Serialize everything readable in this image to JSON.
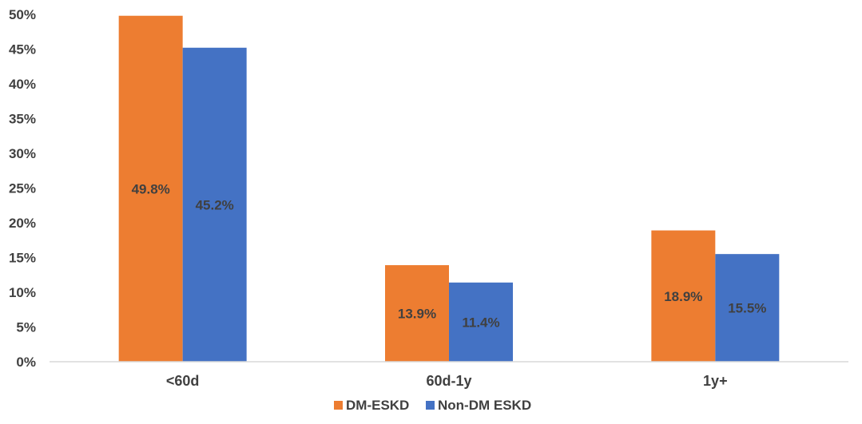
{
  "chart_data": {
    "type": "bar",
    "categories": [
      "<60d",
      "60d-1y",
      "1y+"
    ],
    "series": [
      {
        "name": "DM-ESKD",
        "color": "#ED7D31",
        "values": [
          49.8,
          13.9,
          18.9
        ],
        "labels": [
          "49.8%",
          "13.9%",
          "18.9%"
        ]
      },
      {
        "name": "Non-DM ESKD",
        "color": "#4472C4",
        "values": [
          45.2,
          11.4,
          15.5
        ],
        "labels": [
          "45.2%",
          "11.4%",
          "15.5%"
        ]
      }
    ],
    "ylim": [
      0,
      50
    ],
    "yticks": [
      0,
      5,
      10,
      15,
      20,
      25,
      30,
      35,
      40,
      45,
      50
    ],
    "ytick_labels": [
      "0%",
      "5%",
      "10%",
      "15%",
      "20%",
      "25%",
      "30%",
      "35%",
      "40%",
      "45%",
      "50%"
    ],
    "grid": false,
    "legend_position": "bottom",
    "title": "",
    "xlabel": "",
    "ylabel": ""
  }
}
